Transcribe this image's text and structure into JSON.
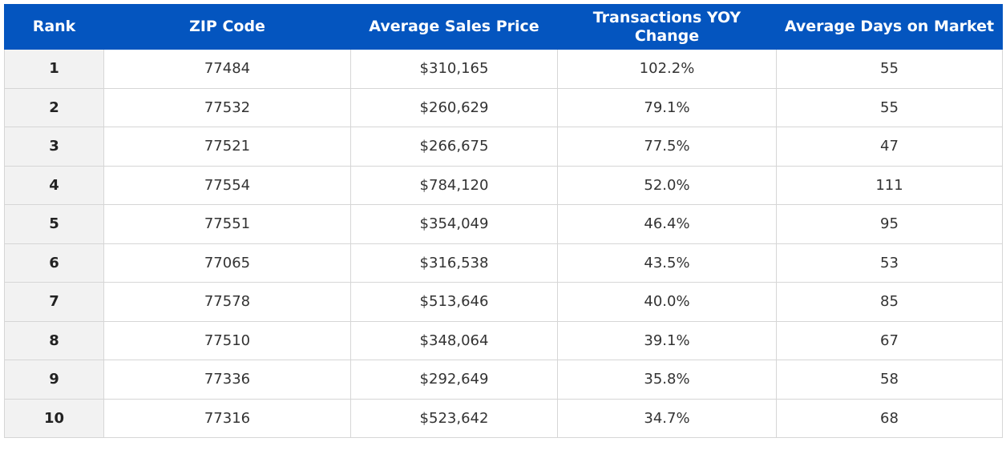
{
  "table": {
    "headers": [
      "Rank",
      "ZIP Code",
      "Average Sales Price",
      "Transactions YOY Change",
      "Average Days on Market"
    ],
    "rows": [
      [
        "1",
        "77484",
        "$310,165",
        "102.2%",
        "55"
      ],
      [
        "2",
        "77532",
        "$260,629",
        "79.1%",
        "55"
      ],
      [
        "3",
        "77521",
        "$266,675",
        "77.5%",
        "47"
      ],
      [
        "4",
        "77554",
        "$784,120",
        "52.0%",
        "111"
      ],
      [
        "5",
        "77551",
        "$354,049",
        "46.4%",
        "95"
      ],
      [
        "6",
        "77065",
        "$316,538",
        "43.5%",
        "53"
      ],
      [
        "7",
        "77578",
        "$513,646",
        "40.0%",
        "85"
      ],
      [
        "8",
        "77510",
        "$348,064",
        "39.1%",
        "67"
      ],
      [
        "9",
        "77336",
        "$292,649",
        "35.8%",
        "58"
      ],
      [
        "10",
        "77316",
        "$523,642",
        "34.7%",
        "68"
      ]
    ]
  }
}
